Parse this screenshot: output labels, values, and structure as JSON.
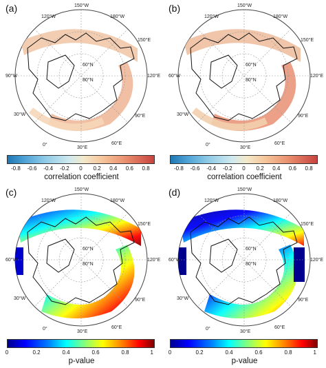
{
  "panels": [
    {
      "label": "(a)",
      "type": "correlation"
    },
    {
      "label": "(b)",
      "type": "correlation"
    },
    {
      "label": "(c)",
      "type": "pvalue"
    },
    {
      "label": "(d)",
      "type": "pvalue"
    }
  ],
  "map_labels": {
    "lon_150w": "150°W",
    "lon_120w": "120°W",
    "lon_180w": "180°W",
    "lon_150e": "150°E",
    "lon_90w": "90°W",
    "lon_120e": "120°E",
    "lon_60w": "60°W",
    "lon_90e": "90°E",
    "lon_30w": "30°W",
    "lon_60e": "60°E",
    "lon_0": "0°",
    "lon_30e": "30°E",
    "lat_60n": "60°N",
    "lat_80n": "80°N"
  },
  "colorbars": {
    "correlation": {
      "title": "correlation coefficient",
      "ticks": [
        "-0.8",
        "-0.6",
        "-0.4",
        "-0.2",
        "0",
        "0.2",
        "0.4",
        "0.6",
        "0.8"
      ],
      "range": [
        -0.9,
        0.9
      ],
      "colors": [
        "#1f78b4",
        "#8cc9e6",
        "#f3e9c9",
        "#ea9170",
        "#c8433f"
      ]
    },
    "pvalue": {
      "title": "p-value",
      "ticks": [
        "0",
        "0.2",
        "0.4",
        "0.6",
        "0.8",
        "1"
      ],
      "range": [
        0,
        1
      ],
      "colors": [
        "#00008f",
        "#0000ff",
        "#00ffff",
        "#ffff00",
        "#ff0000",
        "#800000"
      ]
    }
  }
}
